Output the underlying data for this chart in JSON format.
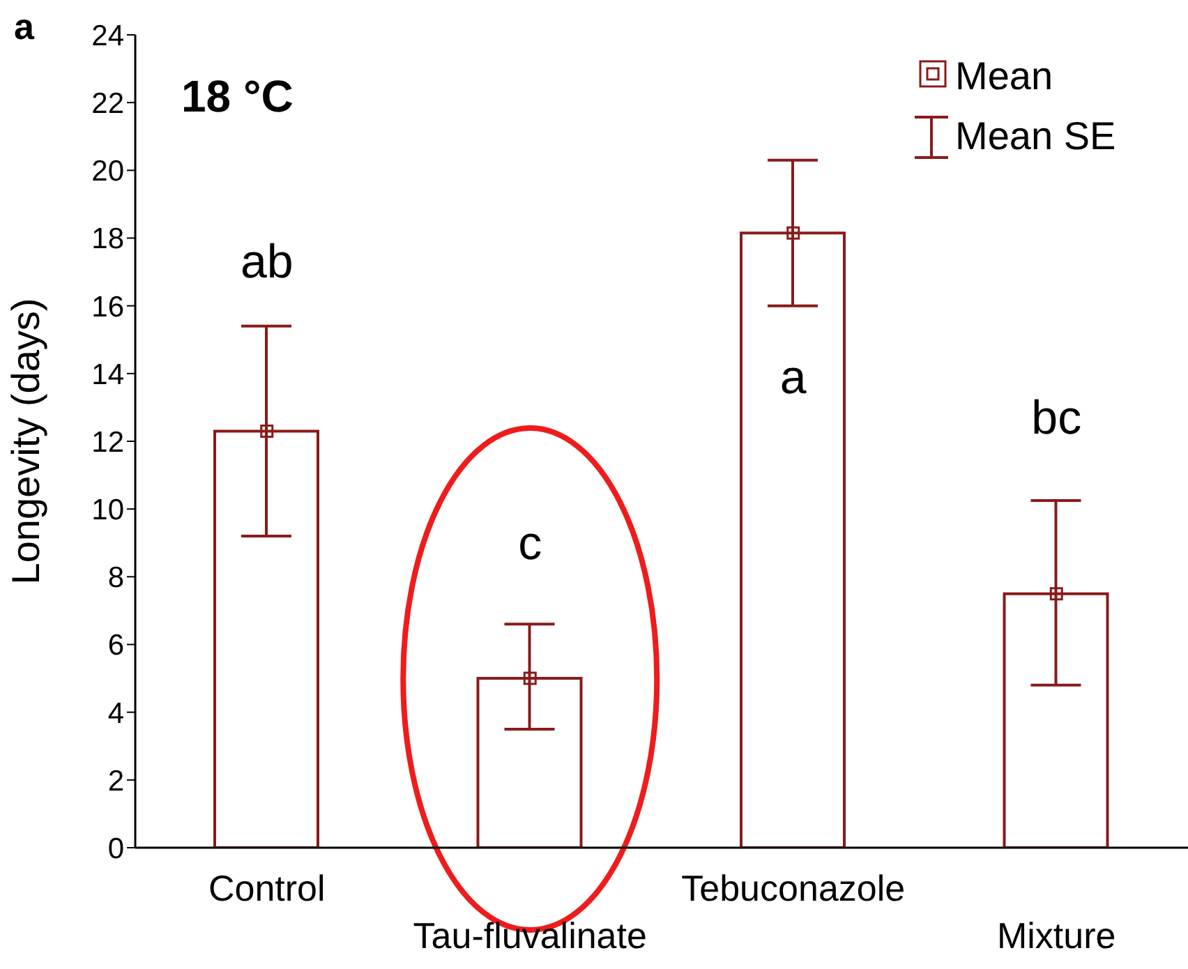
{
  "chart_data": {
    "type": "bar",
    "ylabel": "Longevity (days)",
    "categories": [
      "Control",
      "Tau-fluvalinate",
      "Tebuconazole",
      "Mixture"
    ],
    "series": [
      {
        "name": "Mean",
        "color": "#8b1a1a",
        "values": [
          12.3,
          5.0,
          18.15,
          7.5
        ],
        "errors": [
          [
            9.2,
            15.4
          ],
          [
            3.5,
            6.6
          ],
          [
            16.0,
            20.3
          ],
          [
            4.8,
            10.25
          ]
        ]
      },
      {
        "type": "scatter",
        "color": "#8b1a1a",
        "x": [
          "Control",
          "Tau-fluvalinate",
          "Tebuconazole",
          "Mixture"
        ],
        "values": [
          12.3,
          5.0,
          18.15,
          7.5
        ]
      }
    ],
    "ylim": [
      0,
      24
    ],
    "yticks": [
      0,
      2,
      4,
      6,
      8,
      10,
      12,
      14,
      16,
      18,
      20,
      22,
      24
    ],
    "marker": "square",
    "legend": "top right",
    "grid": false,
    "annotations": [
      "a",
      "18 °C",
      "Mean SE",
      "ab",
      "c",
      "a",
      "bc"
    ]
  }
}
